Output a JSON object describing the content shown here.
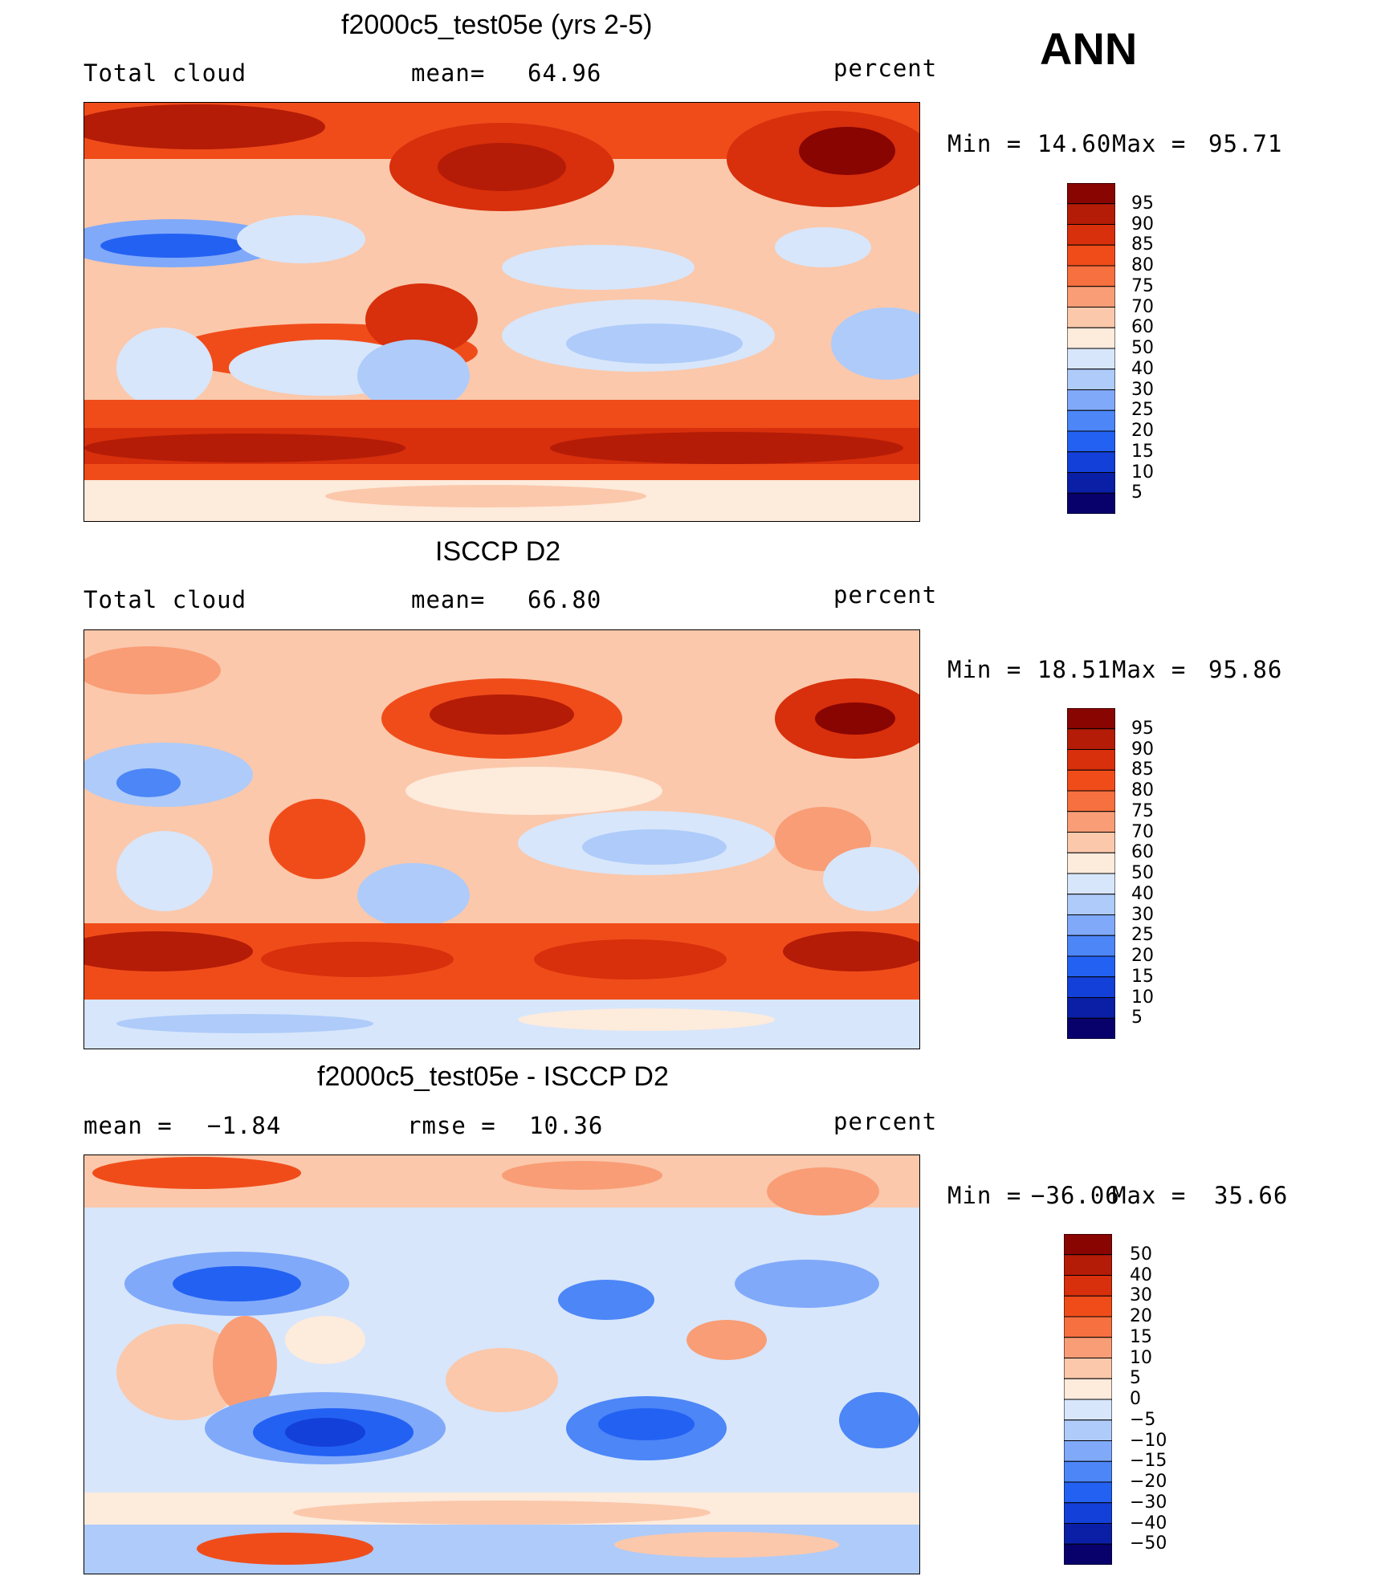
{
  "season": "ANN",
  "colors": {
    "diverging": [
      "#08006b",
      "#0a1fa6",
      "#1340d8",
      "#2361f2",
      "#4c86f7",
      "#80a9fa",
      "#aecbfa",
      "#d7e6fb",
      "#fdebdc",
      "#fbc8ab",
      "#f99d76",
      "#f7703f",
      "#f04c1a",
      "#d82f0c",
      "#b41c07",
      "#880502"
    ],
    "land_outline": "#000000"
  },
  "panels": [
    {
      "title": "f2000c5_test05e (yrs 2-5)",
      "left_label": "Total cloud",
      "center_label": "mean=",
      "center_value": "64.96",
      "units": "percent",
      "min_label": "Min =",
      "min_value": "14.60",
      "max_label": "Max =",
      "max_value": "95.71",
      "colorbar_labels": [
        "95",
        "90",
        "85",
        "80",
        "75",
        "70",
        "60",
        "50",
        "40",
        "30",
        "25",
        "20",
        "15",
        "10",
        "5"
      ]
    },
    {
      "title": "ISCCP D2",
      "left_label": "Total cloud",
      "center_label": "mean=",
      "center_value": "66.80",
      "units": "percent",
      "min_label": "Min =",
      "min_value": "18.51",
      "max_label": "Max =",
      "max_value": "95.86",
      "colorbar_labels": [
        "95",
        "90",
        "85",
        "80",
        "75",
        "70",
        "60",
        "50",
        "40",
        "30",
        "25",
        "20",
        "15",
        "10",
        "5"
      ]
    },
    {
      "title": "f2000c5_test05e - ISCCP D2",
      "left_label": "mean =",
      "left_value": "−1.84",
      "center_label": "rmse =",
      "center_value": "10.36",
      "units": "percent",
      "min_label": "Min =",
      "min_value": "−36.06",
      "max_label": "Max =",
      "max_value": "35.66",
      "colorbar_labels": [
        "50",
        "40",
        "30",
        "20",
        "15",
        "10",
        "5",
        "0",
        "−5",
        "−10",
        "−15",
        "−20",
        "−30",
        "−40",
        "−50"
      ]
    }
  ],
  "chart_data": [
    {
      "type": "heatmap",
      "title": "f2000c5_test05e (yrs 2-5)",
      "variable": "Total cloud",
      "units": "percent",
      "mean": 64.96,
      "min": 14.6,
      "max": 95.71,
      "levels": [
        5,
        10,
        15,
        20,
        25,
        30,
        40,
        50,
        60,
        70,
        75,
        80,
        85,
        90,
        95
      ]
    },
    {
      "type": "heatmap",
      "title": "ISCCP D2",
      "variable": "Total cloud",
      "units": "percent",
      "mean": 66.8,
      "min": 18.51,
      "max": 95.86,
      "levels": [
        5,
        10,
        15,
        20,
        25,
        30,
        40,
        50,
        60,
        70,
        75,
        80,
        85,
        90,
        95
      ]
    },
    {
      "type": "heatmap",
      "title": "f2000c5_test05e - ISCCP D2",
      "units": "percent",
      "mean": -1.84,
      "rmse": 10.36,
      "min": -36.06,
      "max": 35.66,
      "levels": [
        -50,
        -40,
        -30,
        -20,
        -15,
        -10,
        -5,
        0,
        5,
        10,
        15,
        20,
        30,
        40,
        50
      ]
    }
  ]
}
